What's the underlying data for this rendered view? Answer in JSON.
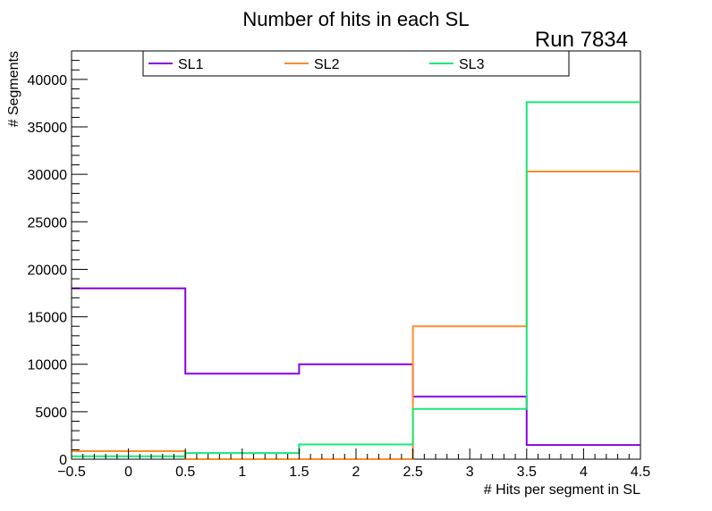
{
  "chart_data": {
    "type": "step",
    "title": "Number of hits in each SL",
    "annotation": "Run 7834",
    "xlabel": "# Hits per segment in SL",
    "ylabel": "# Segments",
    "xlim": [
      -0.5,
      4.5
    ],
    "ylim": [
      0,
      43000
    ],
    "bin_edges": [
      -0.5,
      0.5,
      1.5,
      2.5,
      3.5,
      4.5
    ],
    "x_ticks": [
      {
        "value": -0.5,
        "label": "−0.5"
      },
      {
        "value": 0,
        "label": "0"
      },
      {
        "value": 0.5,
        "label": "0.5"
      },
      {
        "value": 1,
        "label": "1"
      },
      {
        "value": 1.5,
        "label": "1.5"
      },
      {
        "value": 2,
        "label": "2"
      },
      {
        "value": 2.5,
        "label": "2.5"
      },
      {
        "value": 3,
        "label": "3"
      },
      {
        "value": 3.5,
        "label": "3.5"
      },
      {
        "value": 4,
        "label": "4"
      },
      {
        "value": 4.5,
        "label": "4.5"
      }
    ],
    "y_ticks": [
      {
        "value": 0,
        "label": "0"
      },
      {
        "value": 5000,
        "label": "5000"
      },
      {
        "value": 10000,
        "label": "10000"
      },
      {
        "value": 15000,
        "label": "15000"
      },
      {
        "value": 20000,
        "label": "20000"
      },
      {
        "value": 25000,
        "label": "25000"
      },
      {
        "value": 30000,
        "label": "30000"
      },
      {
        "value": 35000,
        "label": "35000"
      },
      {
        "value": 40000,
        "label": "40000"
      }
    ],
    "series": [
      {
        "name": "SL1",
        "color": "#8a00e6",
        "values": [
          18000,
          9000,
          10000,
          6600,
          1500
        ]
      },
      {
        "name": "SL2",
        "color": "#ff8c2a",
        "values": [
          850,
          0,
          0,
          14000,
          30300
        ]
      },
      {
        "name": "SL3",
        "color": "#17e877",
        "values": [
          300,
          650,
          1550,
          5300,
          37600
        ]
      }
    ],
    "legend_position": "top"
  }
}
